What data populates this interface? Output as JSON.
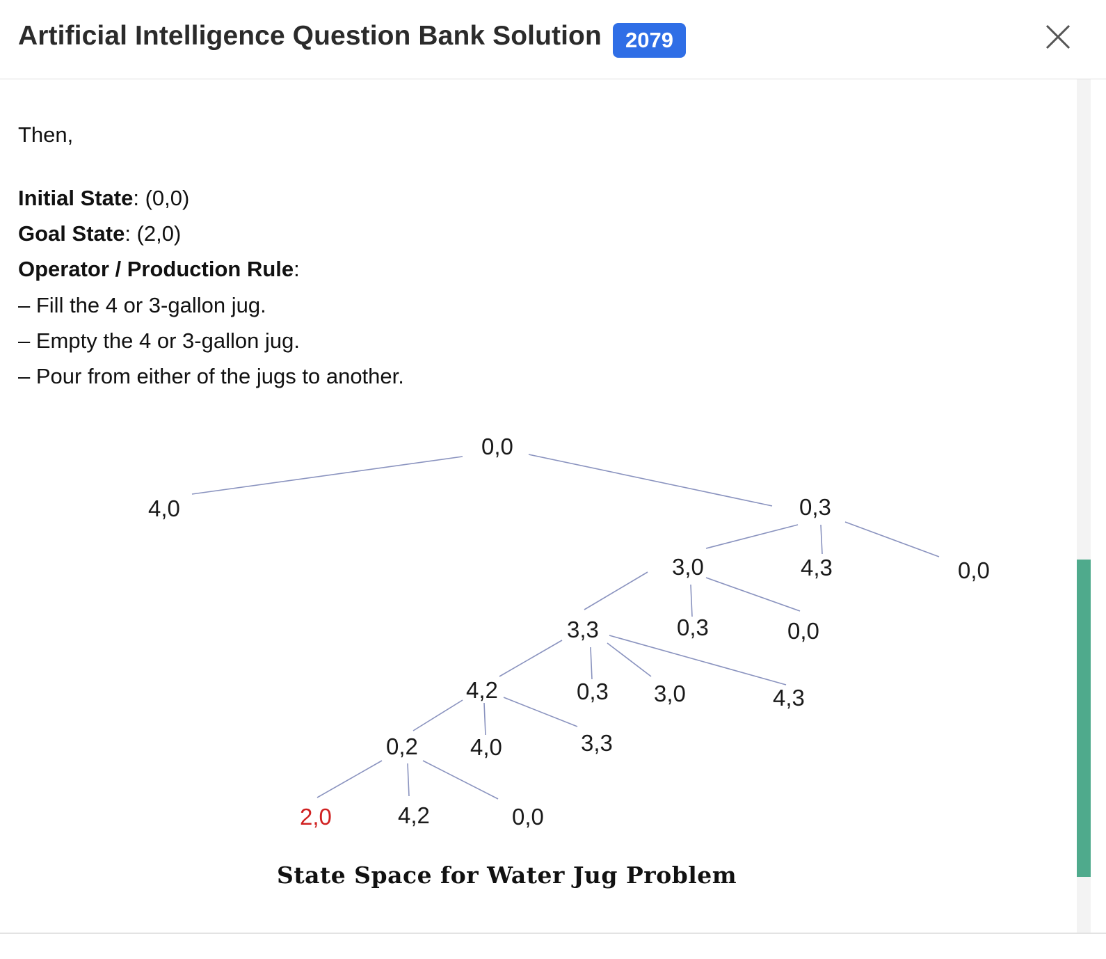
{
  "modal": {
    "title": "Artificial Intelligence Question Bank Solution",
    "badge": "2079",
    "close_icon": "close-icon"
  },
  "content": {
    "then": "Then,",
    "initial_label": "Initial State",
    "initial_value": ": (0,0)",
    "goal_label": "Goal State",
    "goal_value": ": (2,0)",
    "operator_label": "Operator / Production Rule",
    "operator_suffix": ":",
    "rules": [
      "– Fill the 4 or 3-gallon jug.",
      "– Empty the 4 or 3-gallon jug.",
      "– Pour from either of the jugs to another."
    ]
  },
  "diagram": {
    "caption": "State Space for Water Jug Problem",
    "nodes": {
      "root": "0,0",
      "n_4_0": "4,0",
      "n_0_3": "0,3",
      "n_3_0": "3,0",
      "n_4_3": "4,3",
      "n_0_0_a": "0,0",
      "n_3_3": "3,3",
      "n_0_3_b": "0,3",
      "n_0_0_b": "0,0",
      "n_4_2": "4,2",
      "n_0_3_c": "0,3",
      "n_3_0_b": "3,0",
      "n_4_3_b": "4,3",
      "n_0_2": "0,2",
      "n_4_0_b": "4,0",
      "n_3_3_b": "3,3",
      "goal": "2,0",
      "n_4_2_b": "4,2",
      "n_0_0_c": "0,0"
    },
    "goal_color": "#d02020",
    "edge_color": "#8a93bf"
  },
  "scrollbar": {
    "thumb_color": "#4faa8c"
  }
}
